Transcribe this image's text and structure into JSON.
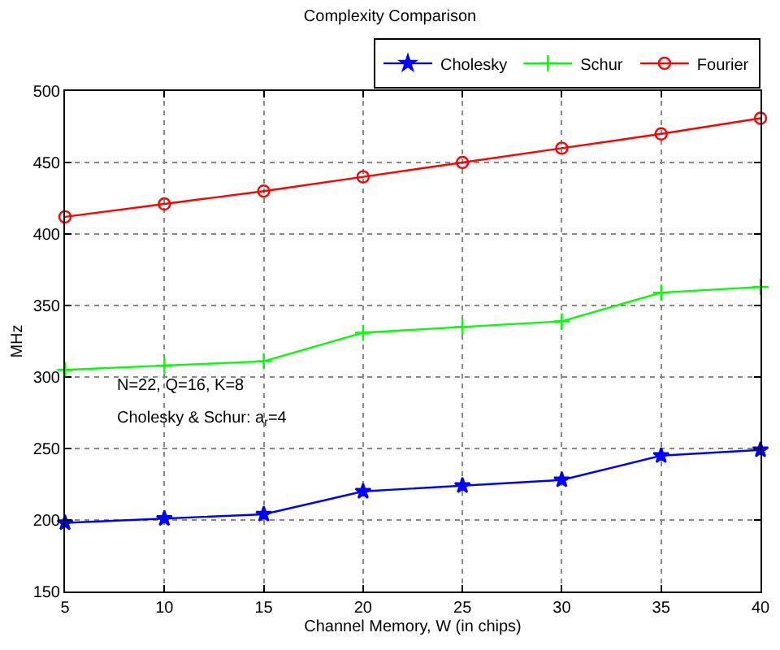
{
  "chart_data": {
    "type": "line",
    "title": "Complexity Comparison",
    "xlabel": "Channel Memory, W (in chips)",
    "ylabel": "MHz",
    "x": [
      5,
      10,
      15,
      20,
      25,
      30,
      35,
      40
    ],
    "series": [
      {
        "name": "Cholesky",
        "color": "#0000ff",
        "marker": "star",
        "values": [
          198,
          201,
          204,
          220,
          224,
          228,
          245,
          249
        ]
      },
      {
        "name": "Schur",
        "color": "#00ff00",
        "marker": "cross",
        "values": [
          305,
          308,
          311,
          331,
          335,
          339,
          359,
          363
        ]
      },
      {
        "name": "Fourier",
        "color": "#ff0000",
        "marker": "circle",
        "values": [
          412,
          421,
          430,
          440,
          450,
          460,
          470,
          481
        ]
      }
    ],
    "xlim": [
      5,
      40
    ],
    "xticks": [
      5,
      10,
      15,
      20,
      25,
      30,
      35,
      40
    ],
    "ylim": [
      150,
      500
    ],
    "yticks": [
      150,
      200,
      250,
      300,
      350,
      400,
      450,
      500
    ],
    "grid": true,
    "legend": "top right",
    "line_style": "solid",
    "annotations": [
      "N=22, Q=16, K=8",
      "Cholesky & Schur: a$_{r}$=4"
    ]
  }
}
